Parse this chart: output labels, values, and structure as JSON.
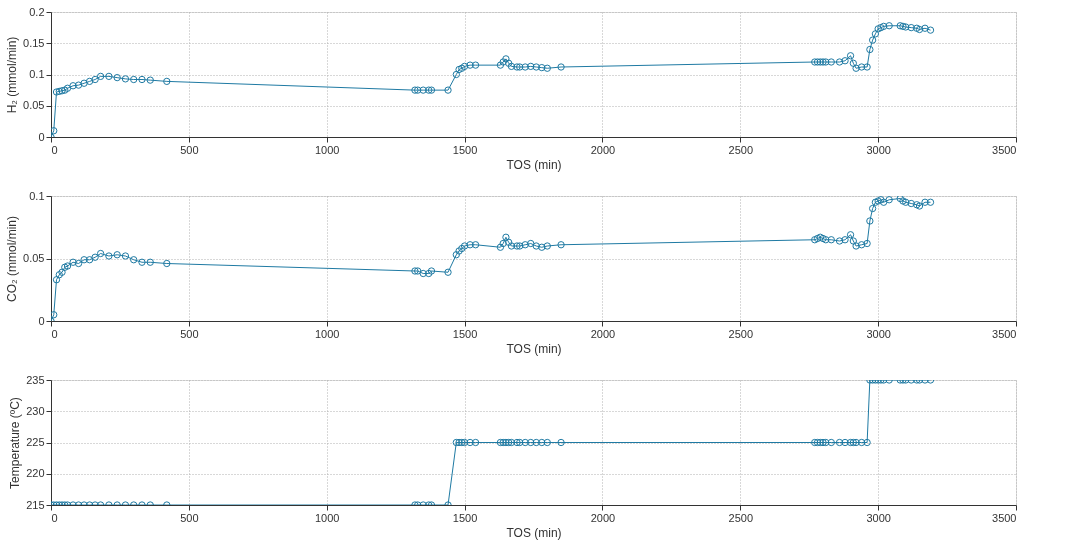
{
  "chart_data": [
    {
      "type": "line",
      "xlabel": "TOS (min)",
      "ylabel": "H₂ (mmol/min)",
      "xlim": [
        0,
        3500
      ],
      "xticks": [
        0,
        500,
        1000,
        1500,
        2000,
        2500,
        3000,
        3500
      ],
      "ylim": [
        0,
        0.2
      ],
      "yticks": [
        0,
        0.05,
        0.1,
        0.15,
        0.2
      ],
      "grid": true,
      "marker": "circle",
      "line_style": "solid",
      "x": [
        0,
        10,
        20,
        30,
        40,
        50,
        60,
        80,
        100,
        120,
        140,
        160,
        180,
        210,
        240,
        270,
        300,
        330,
        360,
        420,
        1320,
        1330,
        1350,
        1370,
        1380,
        1440,
        1470,
        1480,
        1490,
        1500,
        1520,
        1540,
        1630,
        1640,
        1650,
        1660,
        1670,
        1690,
        1700,
        1720,
        1740,
        1760,
        1780,
        1800,
        1850,
        2770,
        2780,
        2790,
        2800,
        2810,
        2830,
        2860,
        2880,
        2900,
        2910,
        2920,
        2940,
        2960,
        2970,
        2980,
        2990,
        3000,
        3010,
        3020,
        3040,
        3080,
        3090,
        3100,
        3120,
        3140,
        3150,
        3170,
        3190
      ],
      "series": [
        {
          "color": "#1f7aa3",
          "values": [
            0,
            0.01,
            0.072,
            0.073,
            0.074,
            0.075,
            0.078,
            0.082,
            0.083,
            0.086,
            0.089,
            0.092,
            0.097,
            0.097,
            0.095,
            0.093,
            0.092,
            0.092,
            0.091,
            0.089,
            0.075,
            0.075,
            0.075,
            0.075,
            0.075,
            0.075,
            0.1,
            0.108,
            0.11,
            0.113,
            0.115,
            0.115,
            0.115,
            0.12,
            0.125,
            0.118,
            0.113,
            0.112,
            0.112,
            0.112,
            0.113,
            0.112,
            0.111,
            0.11,
            0.112,
            0.12,
            0.12,
            0.12,
            0.12,
            0.12,
            0.12,
            0.12,
            0.122,
            0.13,
            0.118,
            0.11,
            0.112,
            0.112,
            0.14,
            0.155,
            0.165,
            0.173,
            0.175,
            0.177,
            0.178,
            0.178,
            0.177,
            0.176,
            0.175,
            0.174,
            0.172,
            0.174,
            0.171
          ]
        }
      ]
    },
    {
      "type": "line",
      "xlabel": "TOS (min)",
      "ylabel": "CO₂ (mmol/min)",
      "xlim": [
        0,
        3500
      ],
      "xticks": [
        0,
        500,
        1000,
        1500,
        2000,
        2500,
        3000,
        3500
      ],
      "ylim": [
        0,
        0.1
      ],
      "yticks": [
        0,
        0.05,
        0.1
      ],
      "grid": true,
      "marker": "circle",
      "line_style": "solid",
      "x": [
        0,
        10,
        20,
        30,
        40,
        50,
        60,
        80,
        100,
        120,
        140,
        160,
        180,
        210,
        240,
        270,
        300,
        330,
        360,
        420,
        1320,
        1330,
        1350,
        1370,
        1380,
        1440,
        1470,
        1480,
        1490,
        1500,
        1520,
        1540,
        1630,
        1640,
        1650,
        1660,
        1670,
        1690,
        1700,
        1720,
        1740,
        1760,
        1780,
        1800,
        1850,
        2770,
        2780,
        2790,
        2800,
        2810,
        2830,
        2860,
        2880,
        2900,
        2910,
        2920,
        2940,
        2960,
        2970,
        2980,
        2990,
        3000,
        3010,
        3020,
        3040,
        3080,
        3090,
        3100,
        3120,
        3140,
        3150,
        3170,
        3190
      ],
      "series": [
        {
          "color": "#1f7aa3",
          "values": [
            0,
            0.005,
            0.033,
            0.037,
            0.039,
            0.043,
            0.044,
            0.047,
            0.046,
            0.049,
            0.049,
            0.051,
            0.054,
            0.052,
            0.053,
            0.052,
            0.049,
            0.047,
            0.047,
            0.046,
            0.04,
            0.04,
            0.038,
            0.038,
            0.04,
            0.039,
            0.053,
            0.056,
            0.058,
            0.06,
            0.061,
            0.061,
            0.059,
            0.062,
            0.067,
            0.063,
            0.06,
            0.06,
            0.06,
            0.061,
            0.062,
            0.06,
            0.059,
            0.06,
            0.061,
            0.065,
            0.066,
            0.067,
            0.066,
            0.065,
            0.065,
            0.064,
            0.065,
            0.069,
            0.064,
            0.06,
            0.061,
            0.062,
            0.08,
            0.09,
            0.095,
            0.096,
            0.097,
            0.095,
            0.097,
            0.098,
            0.096,
            0.095,
            0.094,
            0.093,
            0.092,
            0.095,
            0.095
          ]
        }
      ]
    },
    {
      "type": "line",
      "xlabel": "TOS (min)",
      "ylabel": "Temperature (ºC)",
      "xlim": [
        0,
        3500
      ],
      "xticks": [
        0,
        500,
        1000,
        1500,
        2000,
        2500,
        3000,
        3500
      ],
      "ylim": [
        215,
        235
      ],
      "yticks": [
        215,
        220,
        225,
        230,
        235
      ],
      "grid": true,
      "marker": "circle",
      "line_style": "solid",
      "x": [
        0,
        10,
        20,
        30,
        40,
        50,
        60,
        80,
        100,
        120,
        140,
        160,
        180,
        210,
        240,
        270,
        300,
        330,
        360,
        420,
        1320,
        1330,
        1350,
        1370,
        1380,
        1440,
        1470,
        1480,
        1490,
        1500,
        1520,
        1540,
        1630,
        1640,
        1650,
        1660,
        1670,
        1690,
        1700,
        1720,
        1740,
        1760,
        1780,
        1800,
        1850,
        2770,
        2780,
        2790,
        2800,
        2810,
        2830,
        2860,
        2880,
        2900,
        2910,
        2920,
        2940,
        2960,
        2970,
        2980,
        2990,
        3000,
        3010,
        3020,
        3040,
        3080,
        3090,
        3100,
        3120,
        3140,
        3150,
        3170,
        3190
      ],
      "series": [
        {
          "color": "#1f7aa3",
          "values": [
            215,
            215,
            215,
            215,
            215,
            215,
            215,
            215,
            215,
            215,
            215,
            215,
            215,
            215,
            215,
            215,
            215,
            215,
            215,
            215,
            215,
            215,
            215,
            215,
            215,
            215,
            225,
            225,
            225,
            225,
            225,
            225,
            225,
            225,
            225,
            225,
            225,
            225,
            225,
            225,
            225,
            225,
            225,
            225,
            225,
            225,
            225,
            225,
            225,
            225,
            225,
            225,
            225,
            225,
            225,
            225,
            225,
            225,
            235,
            235,
            235,
            235,
            235,
            235,
            235,
            235,
            235,
            235,
            235,
            235,
            235,
            235,
            235
          ]
        }
      ]
    }
  ]
}
